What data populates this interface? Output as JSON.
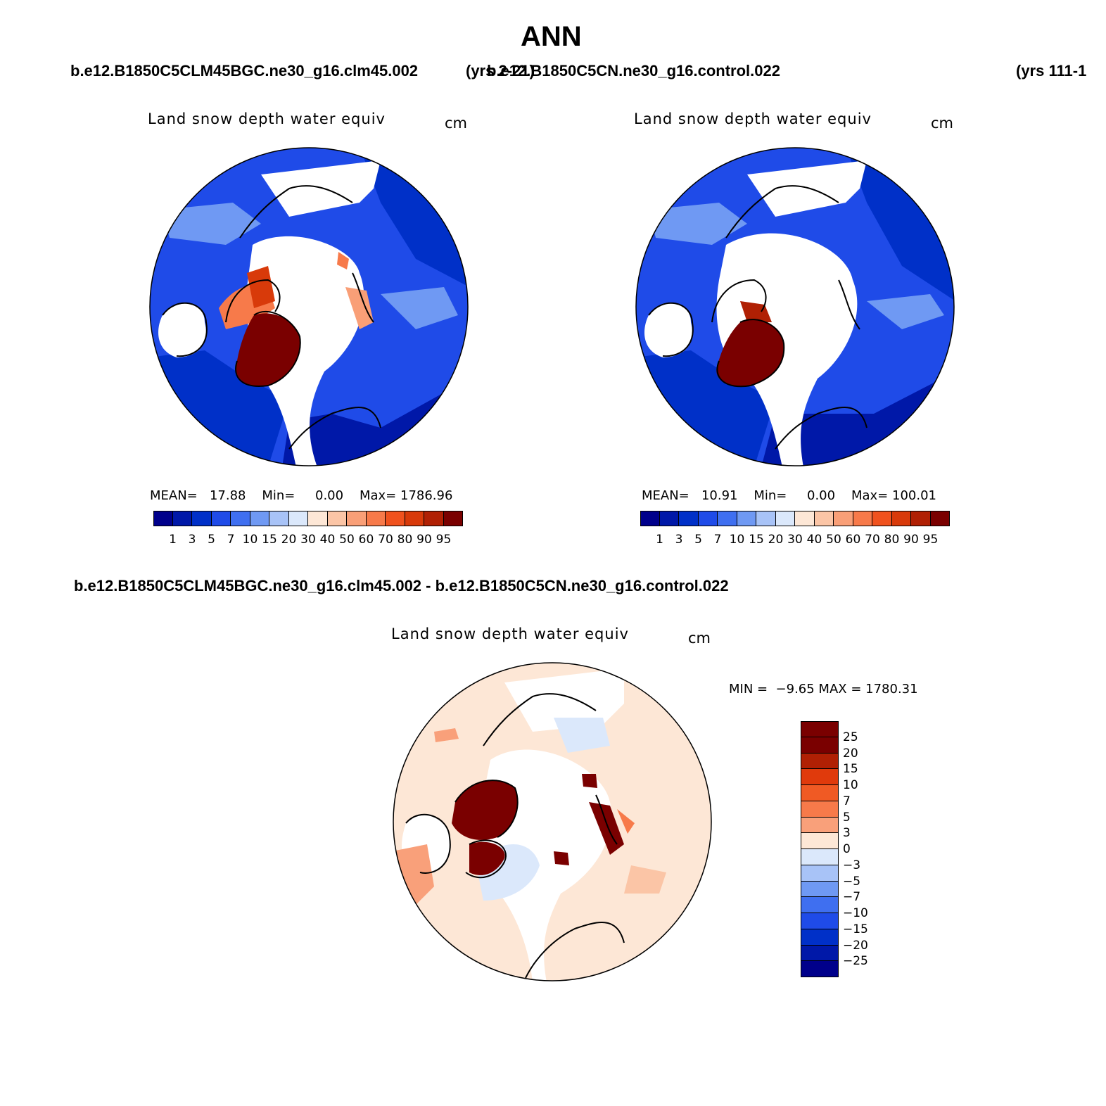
{
  "page": {
    "season": "ANN",
    "case_a": "b.e12.B1850C5CLM45BGC.ne30_g16.clm45.002",
    "case_a_years": "(yrs 2-21)",
    "case_b": "b.e12.B1850C5CN.ne30_g16.control.022",
    "case_b_years": "(yrs 111-1",
    "diff_title": "b.e12.B1850C5CLM45BGC.ne30_g16.clm45.002 - b.e12.B1850C5CN.ne30_g16.control.022"
  },
  "panels": [
    {
      "variable": "Land snow depth water equiv",
      "units": "cm",
      "stats": {
        "mean_label": "MEAN=",
        "mean": "17.88",
        "min_label": "Min=",
        "min": "0.00",
        "max_label": "Max=",
        "max": "1786.96"
      }
    },
    {
      "variable": "Land snow depth water equiv",
      "units": "cm",
      "stats": {
        "mean_label": "MEAN=",
        "mean": "10.91",
        "min_label": "Min=",
        "min": "0.00",
        "max_label": "Max=",
        "max": "100.01"
      }
    },
    {
      "variable": "Land snow depth water equiv",
      "units": "cm",
      "stats": {
        "text": "MIN =  −9.65 MAX = 1780.31"
      }
    }
  ],
  "colorbars": {
    "abs": {
      "colors": [
        "#00008b",
        "#0018a8",
        "#0030c8",
        "#1f4be8",
        "#3f6ff0",
        "#6f99f3",
        "#a8c3f7",
        "#dbe8fb",
        "#fde7d6",
        "#fbc5a6",
        "#f99f77",
        "#f77a4a",
        "#f0521e",
        "#d83a0a",
        "#b02004",
        "#7a0000"
      ],
      "labels": [
        "1",
        "3",
        "5",
        "7",
        "10",
        "15",
        "20",
        "30",
        "40",
        "50",
        "60",
        "70",
        "80",
        "90",
        "95"
      ]
    },
    "diff": {
      "colors_top_to_bottom": [
        "#7a0000",
        "#b02004",
        "#e03a0c",
        "#f05a24",
        "#f77a4a",
        "#f9a07a",
        "#fde7d6",
        "#dbe8fb",
        "#a8c3f7",
        "#6f99f3",
        "#3f6ff0",
        "#1f4be8",
        "#0030c8",
        "#0018a8",
        "#00008b"
      ],
      "labels_top_to_bottom": [
        "25",
        "20",
        "15",
        "10",
        "7",
        "5",
        "3",
        "0",
        "−3",
        "−5",
        "−7",
        "−10",
        "−15",
        "−20",
        "−25"
      ]
    }
  }
}
